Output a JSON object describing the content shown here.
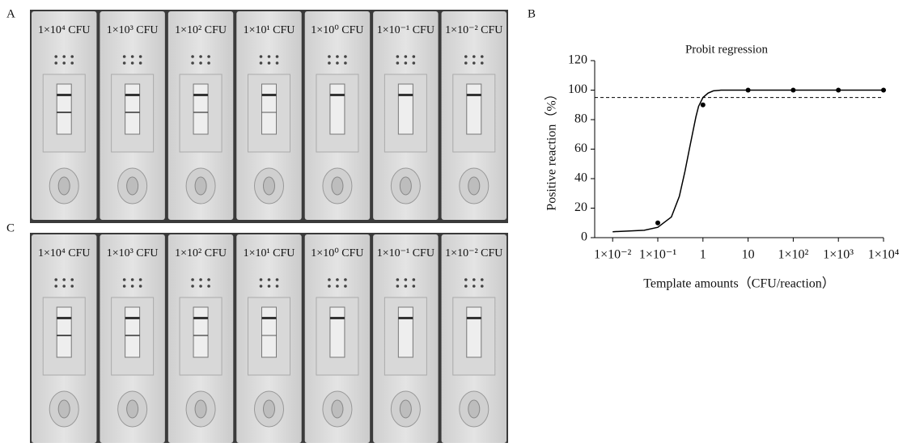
{
  "panels": {
    "A": {
      "label": "A",
      "strip_labels": [
        "1×10⁴ CFU",
        "1×10³ CFU",
        "1×10² CFU",
        "1×10¹ CFU",
        "1×10⁰ CFU",
        "1×10⁻¹ CFU",
        "1×10⁻² CFU"
      ]
    },
    "B": {
      "label": "B"
    },
    "C": {
      "label": "C",
      "strip_labels": [
        "1×10⁴ CFU",
        "1×10³ CFU",
        "1×10² CFU",
        "1×10¹ CFU",
        "1×10⁰ CFU",
        "1×10⁻¹ CFU",
        "1×10⁻² CFU"
      ]
    }
  },
  "chart_data": {
    "type": "scatter",
    "title": "Probit regression",
    "x_label": "Template amounts（CFU/reaction）",
    "y_label": "Positive reaction（%）",
    "x": [
      0.1,
      1,
      10,
      100,
      1000,
      10000
    ],
    "values": [
      10,
      90,
      100,
      100,
      100,
      100
    ],
    "fit_x": [
      0.01,
      0.05,
      0.1,
      0.2,
      0.3,
      0.4,
      0.5,
      0.6,
      0.7,
      0.8,
      1,
      1.3,
      1.7,
      2.5,
      10000
    ],
    "fit_values": [
      4,
      5,
      7,
      14,
      28,
      45,
      60,
      72,
      82,
      89,
      95,
      98,
      99.5,
      100,
      100
    ],
    "reference_line": 95,
    "color": "#000000",
    "xscale": "log",
    "xlim": [
      0.004,
      10000
    ],
    "ylim": [
      0,
      120
    ],
    "xticks": [
      {
        "value": 0.01,
        "label": "1×10⁻²"
      },
      {
        "value": 0.1,
        "label": "1×10⁻¹"
      },
      1,
      10,
      {
        "value": 100,
        "label": "1×10²"
      },
      {
        "value": 1000,
        "label": "1×10³"
      },
      {
        "value": 10000,
        "label": "1×10⁴"
      }
    ],
    "yticks": [
      0,
      20,
      40,
      60,
      80,
      100,
      120
    ]
  }
}
